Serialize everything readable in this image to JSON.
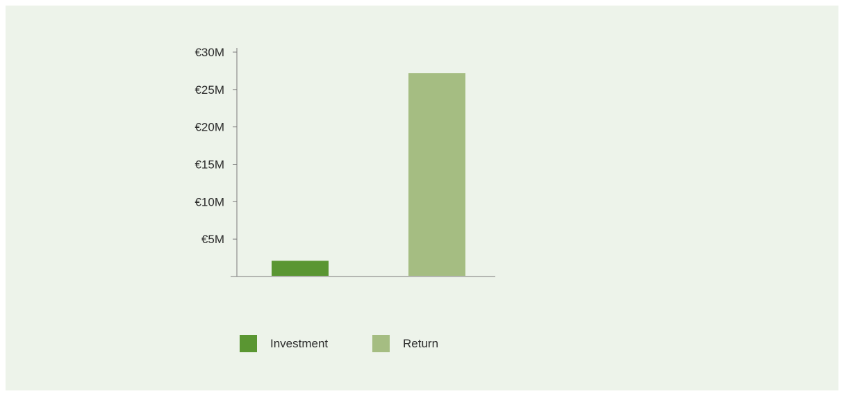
{
  "chart_data": {
    "type": "bar",
    "categories": [
      "Investment",
      "Return"
    ],
    "values": [
      2.1,
      27.2
    ],
    "unit": "€M",
    "ylim": [
      0,
      30
    ],
    "yticks": [
      5,
      10,
      15,
      20,
      25,
      30
    ],
    "ytick_labels": [
      "€5M",
      "€10M",
      "€15M",
      "€20M",
      "€25M",
      "€30M"
    ],
    "colors": [
      "#5a9632",
      "#a5bd82"
    ],
    "legend": {
      "placement": "bottom",
      "items": [
        {
          "label": "Investment",
          "color": "#5a9632"
        },
        {
          "label": "Return",
          "color": "#a5bd82"
        }
      ]
    },
    "grid": false,
    "title": "",
    "xlabel": "",
    "ylabel": ""
  },
  "colors": {
    "background": "#edf3ea",
    "axis": "#7a7a7a"
  }
}
